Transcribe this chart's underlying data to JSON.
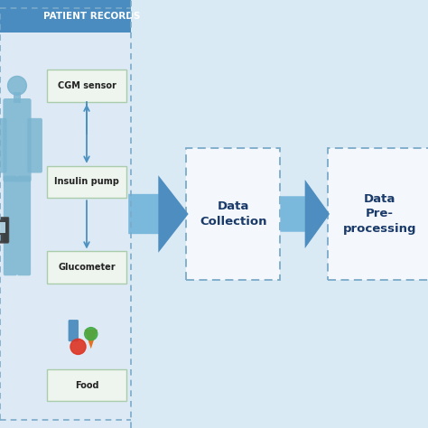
{
  "background_color": "#daeaf5",
  "left_panel_bg": "#e4eef5",
  "left_panel_border_color": "#7aaac8",
  "left_panel_header_bg": "#4a8cbf",
  "left_panel_header_text": "PATIENT RECORDS",
  "left_panel_header_text_color": "#ffffff",
  "box_bg": "#eef5ee",
  "box_border_color": "#aaccaa",
  "box_text_color": "#222222",
  "dashed_box_border_color": "#7aaac8",
  "dashed_box_bg": "#f4f8fc",
  "dashed_box_text_color": "#1a3a6a",
  "arrow_color_light": "#7ab8dc",
  "arrow_color_dark": "#2a6aaa",
  "small_arrow_color": "#4a90c0",
  "labels": [
    "CGM sensor",
    "Insulin pump",
    "Glucometer",
    "Food"
  ],
  "flow_boxes": [
    "Data\nCollection",
    "Data\nPre-\nprocessing"
  ],
  "figure_width": 4.74,
  "figure_height": 4.74,
  "dpi": 100
}
